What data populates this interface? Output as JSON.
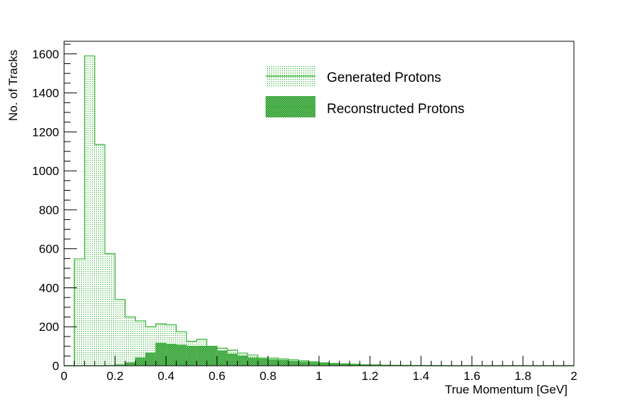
{
  "colors": {
    "generated": "#36b336",
    "reconstructed": "#36b336",
    "axis": "#000000",
    "background": "#ffffff"
  },
  "chart_data": {
    "type": "bar",
    "subtype": "histogram",
    "title": "",
    "xlabel": "True Momentum [GeV]",
    "ylabel": "No. of Tracks",
    "xlim": [
      0,
      2
    ],
    "ylim": [
      0,
      1665
    ],
    "x_ticks": [
      "0",
      "0.2",
      "0.4",
      "0.6",
      "0.8",
      "1",
      "1.2",
      "1.4",
      "1.6",
      "1.8",
      "2"
    ],
    "y_ticks": [
      "0",
      "200",
      "400",
      "600",
      "800",
      "1000",
      "1200",
      "1400",
      "1600"
    ],
    "grid": false,
    "legend_position": "top-center",
    "bins": {
      "start": 0,
      "width": 0.04,
      "count": 50
    },
    "series": [
      {
        "name": "Generated Protons",
        "fill": "dotted",
        "values": [
          0,
          548,
          1590,
          1135,
          575,
          340,
          250,
          230,
          200,
          215,
          210,
          175,
          125,
          135,
          100,
          90,
          80,
          65,
          55,
          40,
          40,
          35,
          30,
          25,
          20,
          15,
          12,
          10,
          8,
          5,
          4,
          3,
          2,
          2,
          1,
          1,
          1,
          0,
          0,
          0,
          0,
          0,
          0,
          0,
          0,
          0,
          0,
          0,
          0,
          0
        ]
      },
      {
        "name": "Reconstructed Protons",
        "fill": "hatched",
        "values": [
          0,
          0,
          0,
          0,
          2,
          4,
          15,
          40,
          65,
          115,
          110,
          105,
          100,
          100,
          95,
          75,
          60,
          50,
          40,
          35,
          30,
          28,
          22,
          18,
          15,
          12,
          10,
          8,
          6,
          5,
          4,
          3,
          2,
          2,
          1,
          1,
          0,
          0,
          0,
          0,
          0,
          0,
          0,
          0,
          0,
          0,
          0,
          0,
          0,
          0
        ]
      }
    ],
    "legend": {
      "entries": [
        "Generated Protons",
        "Reconstructed Protons"
      ]
    }
  }
}
